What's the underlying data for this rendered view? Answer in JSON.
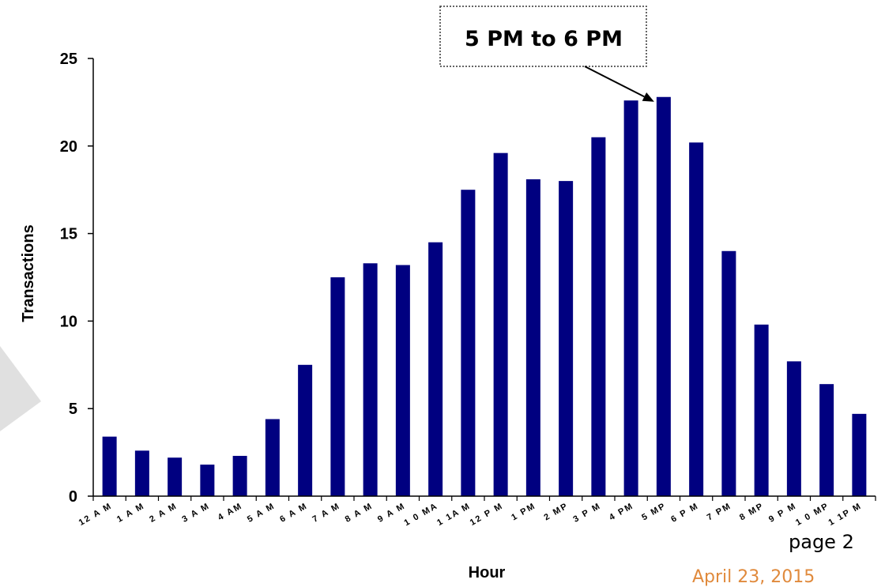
{
  "chart_data": {
    "type": "bar",
    "ylabel": "Transactions",
    "xlabel": "Hour",
    "ylim": [
      0,
      25
    ],
    "yticks": [
      0,
      5,
      10,
      15,
      20,
      25
    ],
    "grid": false,
    "bar_color": "#000080",
    "categories": [
      "12 A M",
      "1 A M",
      "2 A M",
      "3 A M",
      "4 AM",
      "5 A M",
      "6 A M",
      "7 A M",
      "8 A M",
      "9 A M",
      "1 0 MA",
      "1 1A M",
      "12 P M",
      "1 PM",
      "2 MP",
      "3 P M",
      "4 PM",
      "5 MP",
      "6 P M",
      "7 PM",
      "8 MP",
      "9 P M",
      "1 0 MP",
      "1 1P M"
    ],
    "values": [
      3.4,
      2.6,
      2.2,
      1.8,
      2.3,
      4.4,
      7.5,
      12.5,
      13.3,
      13.2,
      14.5,
      17.5,
      19.6,
      18.1,
      18.0,
      20.5,
      22.6,
      22.8,
      20.2,
      14.0,
      9.8,
      7.7,
      6.4,
      4.7
    ],
    "annotation": {
      "text": "5 PM to 6 PM",
      "target_index": 17
    }
  },
  "footer": {
    "page": "page 2",
    "date": "April 23, 2015"
  },
  "colors": {
    "bars": "#000080",
    "date": "#e08a3c",
    "decor_triangle": "#e0e0e0"
  }
}
